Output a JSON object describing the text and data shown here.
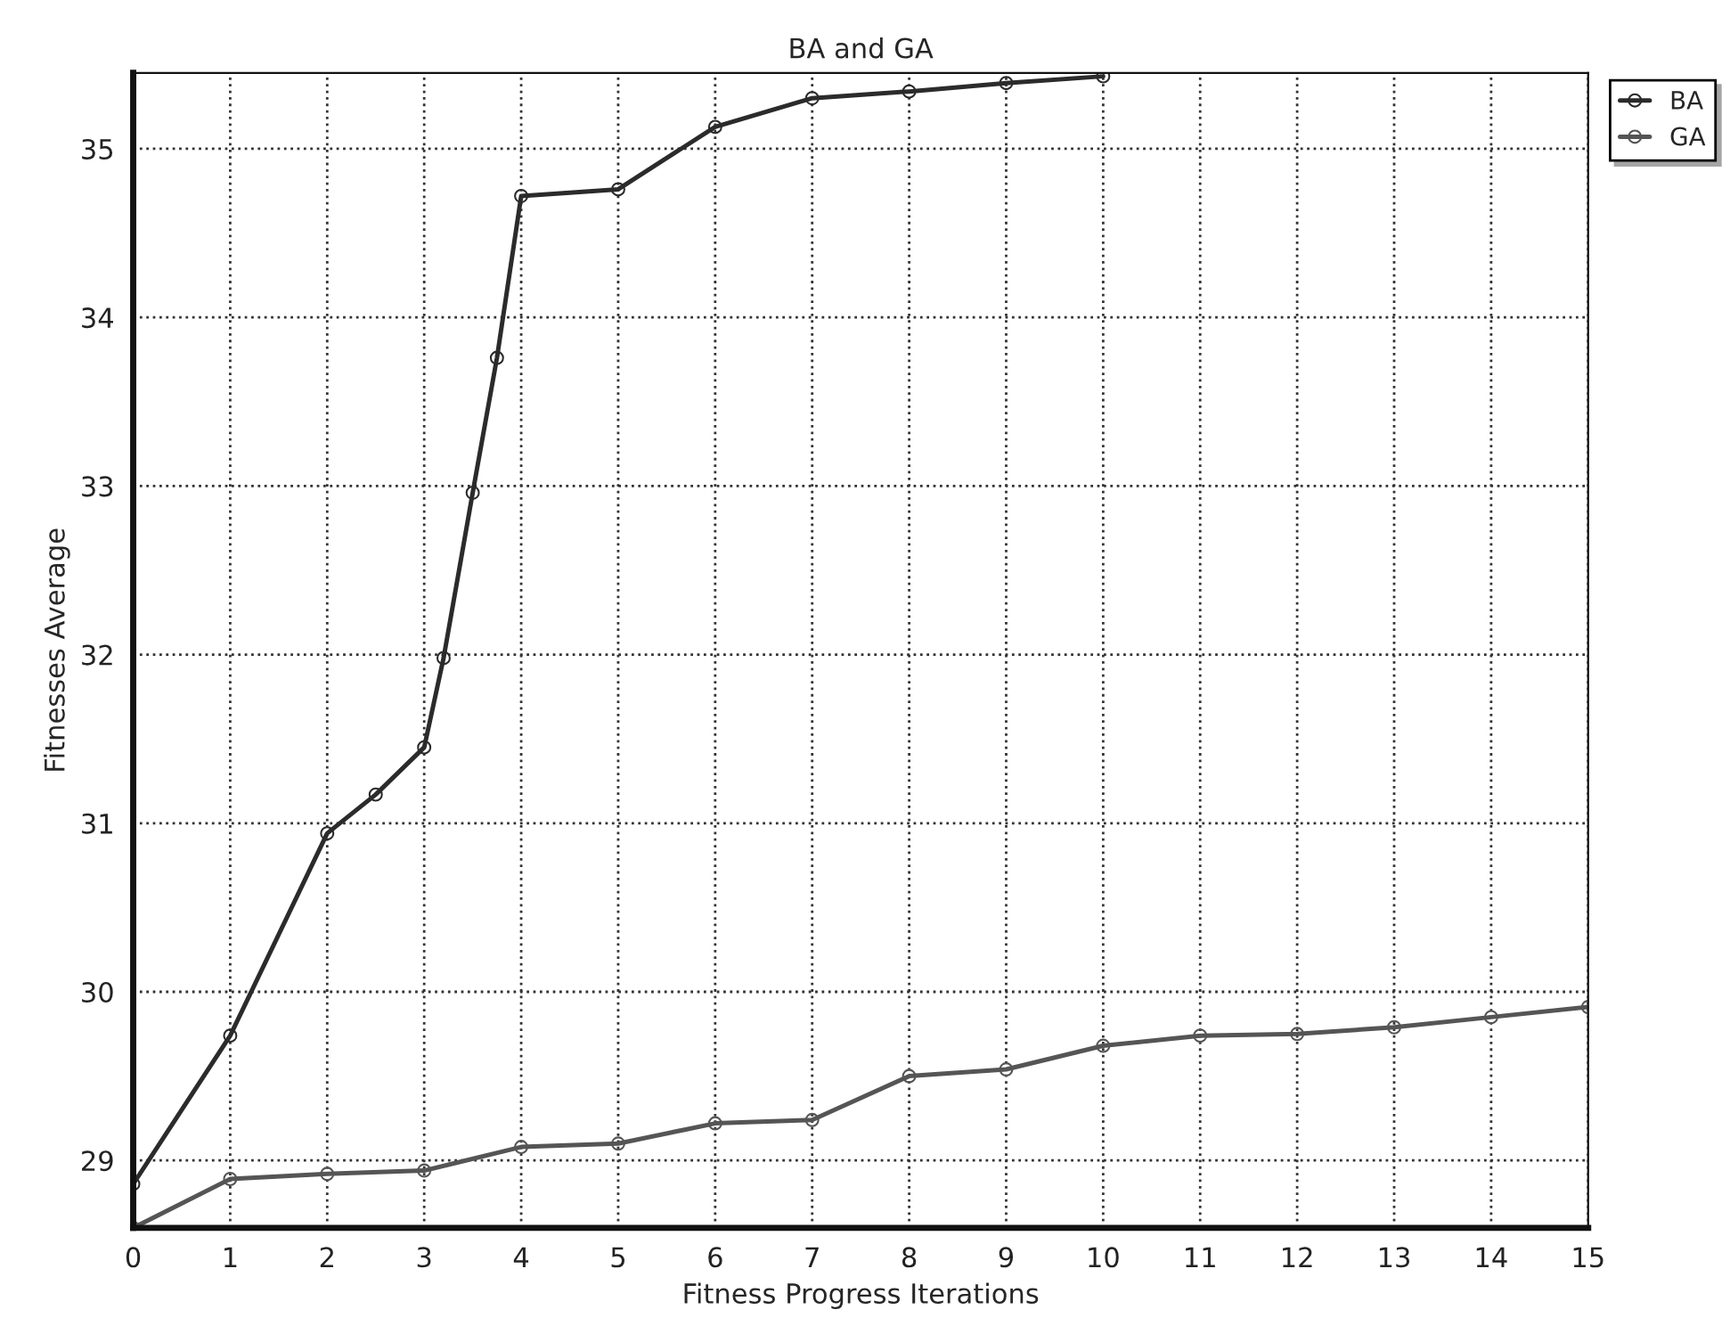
{
  "chart_data": {
    "type": "line",
    "title": "BA and GA",
    "xlabel": "Fitness Progress Iterations",
    "ylabel": "Fitnesses Average",
    "xlim": [
      0,
      15
    ],
    "xticks": [
      0,
      1,
      2,
      3,
      4,
      5,
      6,
      7,
      8,
      9,
      10,
      11,
      12,
      13,
      14,
      15
    ],
    "ylim": [
      28.6,
      35.45
    ],
    "yticks": [
      29,
      30,
      31,
      32,
      33,
      34,
      35
    ],
    "grid": true,
    "legend": "top right",
    "marker": "circle",
    "line_style": "solid",
    "series": [
      {
        "name": "BA",
        "color": "#2b2b2b",
        "x": [
          0,
          1,
          2,
          2.5,
          3,
          3.2,
          3.5,
          3.75,
          4,
          5,
          6,
          7,
          8,
          9,
          10
        ],
        "values": [
          28.86,
          29.74,
          30.94,
          31.17,
          31.45,
          31.98,
          32.96,
          33.76,
          34.72,
          34.76,
          35.13,
          35.3,
          35.34,
          35.39,
          35.43
        ]
      },
      {
        "name": "GA",
        "color": "#555555",
        "x": [
          0,
          1,
          2,
          3,
          4,
          5,
          6,
          7,
          8,
          9,
          10,
          11,
          12,
          13,
          14,
          15
        ],
        "values": [
          28.6,
          28.89,
          28.92,
          28.94,
          29.08,
          29.1,
          29.22,
          29.24,
          29.5,
          29.54,
          29.68,
          29.74,
          29.75,
          29.79,
          29.85,
          29.91
        ]
      }
    ]
  }
}
